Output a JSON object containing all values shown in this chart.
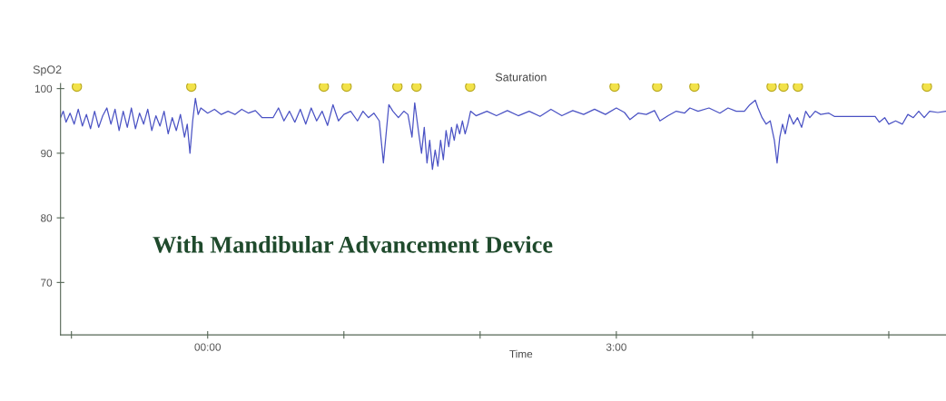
{
  "chart_data": {
    "type": "line",
    "title": "Saturation",
    "xlabel": "Time",
    "ylabel": "SpO2",
    "annotations": [
      "With Mandibular Advancement Device"
    ],
    "xlim": [
      -1.08,
      5.42
    ],
    "xticks": [
      {
        "value": -1,
        "label": null
      },
      {
        "value": 0,
        "label": "00:00"
      },
      {
        "value": 1,
        "label": null
      },
      {
        "value": 2,
        "label": null
      },
      {
        "value": 3,
        "label": "3:00"
      },
      {
        "value": 4,
        "label": null
      },
      {
        "value": 5,
        "label": null
      }
    ],
    "ylim": [
      61.9,
      100.8
    ],
    "yticks": [
      70,
      80,
      90,
      100
    ],
    "grid": false,
    "legend": false,
    "line_style": "solid",
    "series": [
      {
        "color": "#4a52c4",
        "marker": "none",
        "x": [
          -1.08,
          -1.06,
          -1.04,
          -1.01,
          -0.98,
          -0.95,
          -0.92,
          -0.89,
          -0.86,
          -0.83,
          -0.8,
          -0.77,
          -0.74,
          -0.71,
          -0.68,
          -0.65,
          -0.62,
          -0.59,
          -0.56,
          -0.53,
          -0.5,
          -0.47,
          -0.44,
          -0.41,
          -0.38,
          -0.35,
          -0.32,
          -0.29,
          -0.26,
          -0.23,
          -0.2,
          -0.17,
          -0.15,
          -0.13,
          -0.11,
          -0.09,
          -0.07,
          -0.05,
          0.0,
          0.05,
          0.1,
          0.15,
          0.2,
          0.25,
          0.3,
          0.35,
          0.4,
          0.48,
          0.52,
          0.56,
          0.6,
          0.64,
          0.68,
          0.72,
          0.76,
          0.8,
          0.84,
          0.88,
          0.92,
          0.96,
          1.0,
          1.05,
          1.1,
          1.14,
          1.18,
          1.22,
          1.26,
          1.29,
          1.31,
          1.33,
          1.36,
          1.4,
          1.44,
          1.47,
          1.5,
          1.52,
          1.55,
          1.57,
          1.59,
          1.61,
          1.63,
          1.65,
          1.67,
          1.69,
          1.71,
          1.73,
          1.75,
          1.77,
          1.79,
          1.81,
          1.83,
          1.85,
          1.87,
          1.89,
          1.91,
          1.93,
          1.97,
          2.05,
          2.12,
          2.2,
          2.28,
          2.36,
          2.44,
          2.52,
          2.6,
          2.68,
          2.76,
          2.84,
          2.92,
          3.0,
          3.06,
          3.1,
          3.16,
          3.22,
          3.28,
          3.32,
          3.38,
          3.44,
          3.5,
          3.54,
          3.6,
          3.68,
          3.76,
          3.82,
          3.88,
          3.94,
          3.98,
          4.02,
          4.04,
          4.07,
          4.1,
          4.13,
          4.16,
          4.18,
          4.2,
          4.22,
          4.24,
          4.27,
          4.3,
          4.33,
          4.36,
          4.39,
          4.42,
          4.46,
          4.5,
          4.56,
          4.6,
          4.9,
          4.93,
          4.97,
          5.0,
          5.05,
          5.1,
          5.14,
          5.18,
          5.22,
          5.26,
          5.3,
          5.36,
          5.42
        ],
        "values": [
          95.5,
          96.5,
          94.8,
          96.2,
          94.5,
          96.8,
          94.2,
          96.0,
          93.8,
          96.5,
          94.0,
          95.8,
          97.0,
          94.5,
          96.8,
          93.5,
          96.5,
          94.0,
          97.0,
          93.8,
          96.2,
          94.5,
          96.8,
          93.5,
          95.8,
          94.2,
          96.5,
          93.0,
          95.5,
          93.5,
          96.0,
          92.5,
          94.5,
          90.0,
          95.0,
          98.5,
          96.0,
          97.0,
          96.2,
          96.8,
          96.0,
          96.5,
          96.0,
          96.8,
          96.2,
          96.6,
          95.5,
          95.5,
          97.0,
          95.0,
          96.5,
          94.8,
          96.8,
          94.5,
          97.0,
          95.0,
          96.5,
          94.3,
          97.5,
          95.0,
          96.0,
          96.5,
          95.0,
          96.5,
          95.5,
          96.2,
          95.0,
          88.5,
          93.0,
          97.5,
          96.5,
          95.5,
          96.5,
          96.0,
          92.5,
          97.8,
          93.0,
          90.0,
          94.0,
          88.5,
          92.0,
          87.5,
          90.5,
          88.0,
          92.0,
          89.0,
          93.5,
          91.0,
          94.0,
          92.0,
          94.5,
          93.0,
          95.0,
          93.0,
          94.5,
          96.5,
          95.8,
          96.5,
          95.8,
          96.6,
          95.8,
          96.5,
          95.7,
          96.8,
          95.8,
          96.6,
          96.0,
          96.8,
          96.0,
          97.0,
          96.3,
          95.2,
          96.2,
          96.0,
          96.6,
          95.0,
          95.8,
          96.5,
          96.2,
          97.0,
          96.5,
          97.0,
          96.2,
          97.0,
          96.5,
          96.5,
          97.5,
          98.2,
          97.0,
          95.5,
          94.5,
          95.0,
          92.0,
          88.5,
          92.5,
          94.5,
          93.0,
          96.0,
          94.5,
          95.5,
          94.0,
          96.5,
          95.5,
          96.5,
          96.0,
          96.2,
          95.7,
          95.7,
          94.8,
          95.5,
          94.5,
          95.0,
          94.5,
          96.0,
          95.5,
          96.5,
          95.5,
          96.5,
          96.3,
          96.5
        ]
      },
      {
        "type": "scatter",
        "color": "#f2e24a",
        "marker": "circle",
        "x": [
          -0.96,
          -0.12,
          0.853,
          1.02,
          1.393,
          1.533,
          1.927,
          2.987,
          3.3,
          3.573,
          4.14,
          4.227,
          4.333,
          5.28
        ],
        "values": [
          100.3,
          100.3,
          100.3,
          100.3,
          100.3,
          100.3,
          100.3,
          100.3,
          100.3,
          100.3,
          100.3,
          100.3,
          100.3,
          100.3
        ]
      }
    ]
  }
}
